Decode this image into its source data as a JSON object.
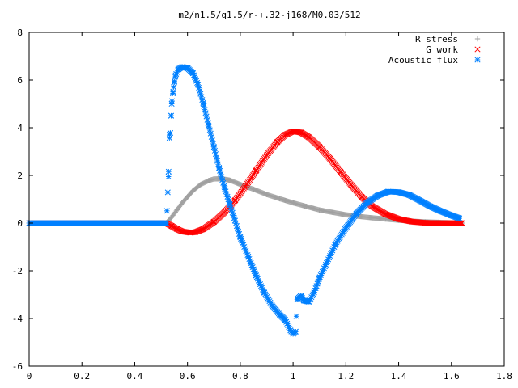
{
  "chart_data": {
    "type": "scatter",
    "title": "m2/n1.5/q1.5/r-+.32-j168/M0.03/512",
    "xlabel": "",
    "ylabel": "",
    "xlim": [
      0,
      1.8
    ],
    "ylim": [
      -6,
      8
    ],
    "xticks": [
      "0",
      "0.2",
      "0.4",
      "0.6",
      "0.8",
      "1",
      "1.2",
      "1.4",
      "1.6",
      "1.8"
    ],
    "yticks": [
      "-6",
      "-4",
      "-2",
      "0",
      "2",
      "4",
      "6",
      "8"
    ],
    "grid": false,
    "legend_position": "top-right",
    "series": [
      {
        "name": "R stress",
        "marker": "+",
        "color": "#a0a0a0",
        "points": [
          [
            0.0,
            0
          ],
          [
            0.52,
            0
          ],
          [
            0.54,
            0.25
          ],
          [
            0.56,
            0.55
          ],
          [
            0.58,
            0.85
          ],
          [
            0.6,
            1.1
          ],
          [
            0.62,
            1.35
          ],
          [
            0.65,
            1.62
          ],
          [
            0.68,
            1.78
          ],
          [
            0.7,
            1.85
          ],
          [
            0.73,
            1.86
          ],
          [
            0.76,
            1.8
          ],
          [
            0.8,
            1.62
          ],
          [
            0.85,
            1.42
          ],
          [
            0.9,
            1.2
          ],
          [
            0.95,
            1.02
          ],
          [
            1.0,
            0.85
          ],
          [
            1.05,
            0.7
          ],
          [
            1.1,
            0.55
          ],
          [
            1.15,
            0.45
          ],
          [
            1.2,
            0.35
          ],
          [
            1.25,
            0.28
          ],
          [
            1.3,
            0.22
          ],
          [
            1.35,
            0.17
          ],
          [
            1.4,
            0.12
          ],
          [
            1.45,
            0.08
          ],
          [
            1.5,
            0.05
          ],
          [
            1.55,
            0.03
          ],
          [
            1.6,
            0.01
          ],
          [
            1.64,
            0.0
          ]
        ]
      },
      {
        "name": "G work",
        "marker": "x",
        "color": "#ff0000",
        "points": [
          [
            0.0,
            0
          ],
          [
            0.52,
            0
          ],
          [
            0.54,
            -0.12
          ],
          [
            0.56,
            -0.25
          ],
          [
            0.58,
            -0.35
          ],
          [
            0.61,
            -0.4
          ],
          [
            0.63,
            -0.38
          ],
          [
            0.66,
            -0.25
          ],
          [
            0.7,
            0.05
          ],
          [
            0.74,
            0.45
          ],
          [
            0.78,
            0.95
          ],
          [
            0.82,
            1.55
          ],
          [
            0.86,
            2.2
          ],
          [
            0.9,
            2.85
          ],
          [
            0.94,
            3.4
          ],
          [
            0.97,
            3.7
          ],
          [
            1.0,
            3.85
          ],
          [
            1.03,
            3.8
          ],
          [
            1.06,
            3.6
          ],
          [
            1.1,
            3.2
          ],
          [
            1.14,
            2.7
          ],
          [
            1.18,
            2.15
          ],
          [
            1.22,
            1.6
          ],
          [
            1.26,
            1.1
          ],
          [
            1.3,
            0.7
          ],
          [
            1.35,
            0.38
          ],
          [
            1.4,
            0.17
          ],
          [
            1.45,
            0.06
          ],
          [
            1.5,
            0.01
          ],
          [
            1.55,
            0.0
          ],
          [
            1.64,
            0.0
          ]
        ]
      },
      {
        "name": "Acoustic flux",
        "marker": "*",
        "color": "#0080ff",
        "points": [
          [
            0.0,
            0
          ],
          [
            0.52,
            0
          ],
          [
            0.528,
            1.95
          ],
          [
            0.532,
            3.72
          ],
          [
            0.535,
            3.78
          ],
          [
            0.538,
            4.5
          ],
          [
            0.54,
            5.0
          ],
          [
            0.545,
            5.5
          ],
          [
            0.55,
            5.9
          ],
          [
            0.555,
            6.2
          ],
          [
            0.565,
            6.45
          ],
          [
            0.58,
            6.55
          ],
          [
            0.6,
            6.5
          ],
          [
            0.62,
            6.3
          ],
          [
            0.64,
            5.8
          ],
          [
            0.66,
            5.0
          ],
          [
            0.68,
            4.1
          ],
          [
            0.7,
            3.2
          ],
          [
            0.72,
            2.3
          ],
          [
            0.74,
            1.5
          ],
          [
            0.76,
            0.8
          ],
          [
            0.78,
            0.1
          ],
          [
            0.8,
            -0.6
          ],
          [
            0.83,
            -1.4
          ],
          [
            0.86,
            -2.2
          ],
          [
            0.89,
            -2.9
          ],
          [
            0.92,
            -3.45
          ],
          [
            0.95,
            -3.85
          ],
          [
            0.97,
            -4.05
          ],
          [
            0.99,
            -4.5
          ],
          [
            1.0,
            -4.65
          ],
          [
            1.01,
            -4.55
          ],
          [
            1.015,
            -3.2
          ],
          [
            1.03,
            -3.05
          ],
          [
            1.04,
            -3.25
          ],
          [
            1.06,
            -3.3
          ],
          [
            1.08,
            -2.9
          ],
          [
            1.1,
            -2.3
          ],
          [
            1.13,
            -1.6
          ],
          [
            1.16,
            -0.9
          ],
          [
            1.2,
            -0.2
          ],
          [
            1.24,
            0.4
          ],
          [
            1.28,
            0.85
          ],
          [
            1.32,
            1.15
          ],
          [
            1.36,
            1.32
          ],
          [
            1.4,
            1.3
          ],
          [
            1.44,
            1.18
          ],
          [
            1.48,
            0.95
          ],
          [
            1.52,
            0.7
          ],
          [
            1.56,
            0.5
          ],
          [
            1.6,
            0.32
          ],
          [
            1.63,
            0.2
          ]
        ]
      }
    ]
  }
}
